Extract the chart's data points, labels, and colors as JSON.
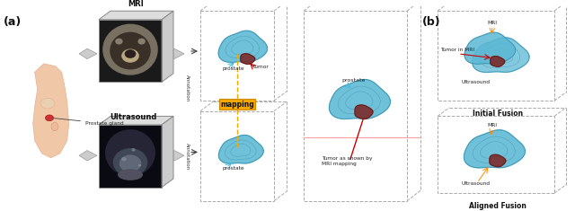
{
  "fig_width": 6.4,
  "fig_height": 2.35,
  "dpi": 100,
  "background_color": "#ffffff",
  "label_a": "(a)",
  "label_b": "(b)",
  "title_mri": "MRI",
  "title_ultrasound": "Ultrasound",
  "title_initial_fusion": "Initial Fusion",
  "title_aligned_fusion": "Aligned Fusion",
  "text_prostate_gland": "Prostate gland",
  "text_annotation": "Annotation",
  "text_mapping": "mapping",
  "text_prostate1": "prostate",
  "text_tumor": "tumor",
  "text_prostate2": "prostate",
  "text_prostate3": "prostate",
  "text_tumor_mapped": "Tumor as shown by\nMRI mapping",
  "text_mri_label1": "MRI",
  "text_ultrasound_label1": "Ultrasound",
  "text_tumor_mri": "Tumor in MRI",
  "text_mri_label2": "MRI",
  "text_ultrasound_label2": "Ultrasound",
  "prostate_color": "#5BB8D4",
  "prostate_edge": "#3A8FA8",
  "tumor_color": "#7B2D2D",
  "mapping_box_color": "#F5A800",
  "arrow_color_cyan": "#4DBBDD",
  "arrow_color_red": "#CC0000",
  "arrow_color_orange": "#FF8C00",
  "dashed_box_color": "#aaaaaa",
  "line_color_pink": "#FF9999",
  "body_fill": "#F0C8A8",
  "body_inner": "#E8B090",
  "body_dark": "#C07050"
}
